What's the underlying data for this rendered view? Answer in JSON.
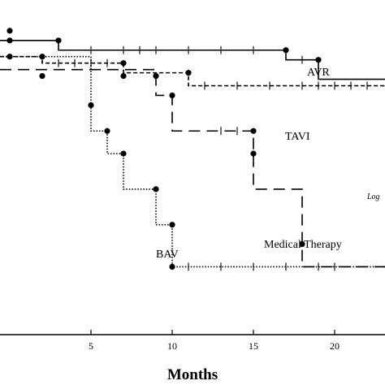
{
  "chart_data": {
    "type": "line",
    "step": true,
    "xlabel": "Months",
    "ylabel": "",
    "xlim": [
      -0.6,
      23.1
    ],
    "ylim": [
      0,
      1
    ],
    "xticks": [
      5,
      10,
      15,
      20
    ],
    "grid": false,
    "legend": "none",
    "side_note": "Log",
    "series": [
      {
        "name": "AVR",
        "style": "solid",
        "color": "#000000",
        "x": [
          -0.6,
          0,
          1,
          3,
          17,
          19,
          23.1
        ],
        "y": [
          0.91,
          0.91,
          0.91,
          0.88,
          0.85,
          0.79,
          0.79
        ],
        "events": [
          [
            0,
            0.94
          ],
          [
            0,
            0.91
          ],
          [
            3,
            0.91
          ],
          [
            17,
            0.88
          ],
          [
            19,
            0.85
          ]
        ],
        "censored": [
          [
            5,
            0.88
          ],
          [
            7,
            0.88
          ],
          [
            8,
            0.88
          ],
          [
            9,
            0.88
          ],
          [
            11,
            0.88
          ],
          [
            13,
            0.88
          ],
          [
            15,
            0.88
          ],
          [
            18,
            0.85
          ]
        ]
      },
      {
        "name": "TAVI",
        "style": "dashed",
        "color": "#000000",
        "x": [
          -0.6,
          0,
          2,
          7,
          11,
          23.1
        ],
        "y": [
          0.86,
          0.86,
          0.84,
          0.81,
          0.77,
          0.77
        ],
        "events": [
          [
            2,
            0.86
          ],
          [
            7,
            0.84
          ],
          [
            11,
            0.81
          ]
        ],
        "censored": [
          [
            3,
            0.84
          ],
          [
            4,
            0.84
          ],
          [
            5,
            0.84
          ],
          [
            6,
            0.84
          ],
          [
            12,
            0.77
          ],
          [
            14,
            0.77
          ],
          [
            16,
            0.77
          ],
          [
            18,
            0.77
          ],
          [
            19,
            0.77
          ],
          [
            20,
            0.77
          ],
          [
            21,
            0.77
          ],
          [
            22,
            0.77
          ]
        ]
      },
      {
        "name": "Medical Therapy",
        "style": "long-dash",
        "color": "#000000",
        "x": [
          -0.6,
          0,
          9,
          10,
          15,
          18,
          23.1
        ],
        "y": [
          0.82,
          0.82,
          0.74,
          0.63,
          0.45,
          0.21,
          0.21
        ],
        "events": [
          [
            2,
            0.8
          ],
          [
            7,
            0.8
          ],
          [
            9,
            0.8
          ],
          [
            10,
            0.74
          ],
          [
            15,
            0.63
          ],
          [
            15,
            0.56
          ],
          [
            18,
            0.28
          ]
        ],
        "censored": [
          [
            13,
            0.63
          ],
          [
            14,
            0.63
          ],
          [
            20,
            0.21
          ]
        ]
      },
      {
        "name": "BAV",
        "style": "dotted",
        "color": "#000000",
        "x": [
          -0.6,
          0,
          5,
          6,
          7,
          9,
          10,
          23.1
        ],
        "y": [
          0.86,
          0.86,
          0.63,
          0.56,
          0.45,
          0.34,
          0.21,
          0.21
        ],
        "events": [
          [
            0,
            0.86
          ],
          [
            5,
            0.71
          ],
          [
            6,
            0.63
          ],
          [
            7,
            0.56
          ],
          [
            9,
            0.45
          ],
          [
            10,
            0.34
          ],
          [
            10,
            0.21
          ]
        ],
        "censored": [
          [
            11,
            0.21
          ],
          [
            13,
            0.21
          ],
          [
            15,
            0.21
          ],
          [
            17,
            0.21
          ],
          [
            19,
            0.21
          ]
        ]
      }
    ],
    "annotations": [
      "AVR",
      "TAVI",
      "Medical Therapy",
      "BAV"
    ]
  }
}
